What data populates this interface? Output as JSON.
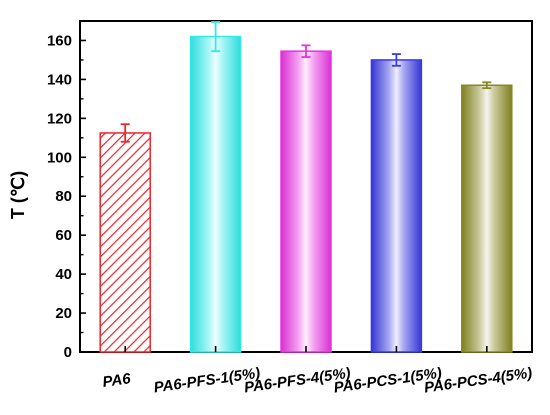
{
  "chart_data": {
    "type": "bar",
    "title": "",
    "ylabel": "T (℃)",
    "xlabel": "",
    "ylim": [
      0,
      170
    ],
    "yticks": [
      0,
      20,
      40,
      60,
      80,
      100,
      120,
      140,
      160
    ],
    "ytick_labels": [
      "0",
      "20",
      "40",
      "60",
      "80",
      "100",
      "120",
      "140",
      "160"
    ],
    "grid": false,
    "legend": "none",
    "categories": [
      "PA6",
      "PA6-PFS-1(5%)",
      "PA6-PFS-4(5%)",
      "PA6-PCS-1(5%)",
      "PA6-PCS-4(5%)"
    ],
    "values": [
      112.5,
      162,
      154.5,
      150,
      137
    ],
    "errors": [
      4.5,
      7.5,
      3,
      3,
      1.5
    ],
    "colors": [
      "#e8262b",
      "#33e8e8",
      "#e633e0",
      "#3a3ae0",
      "#878723"
    ],
    "fill_patterns": [
      "hatch",
      "gradient",
      "gradient",
      "gradient",
      "gradient"
    ]
  }
}
